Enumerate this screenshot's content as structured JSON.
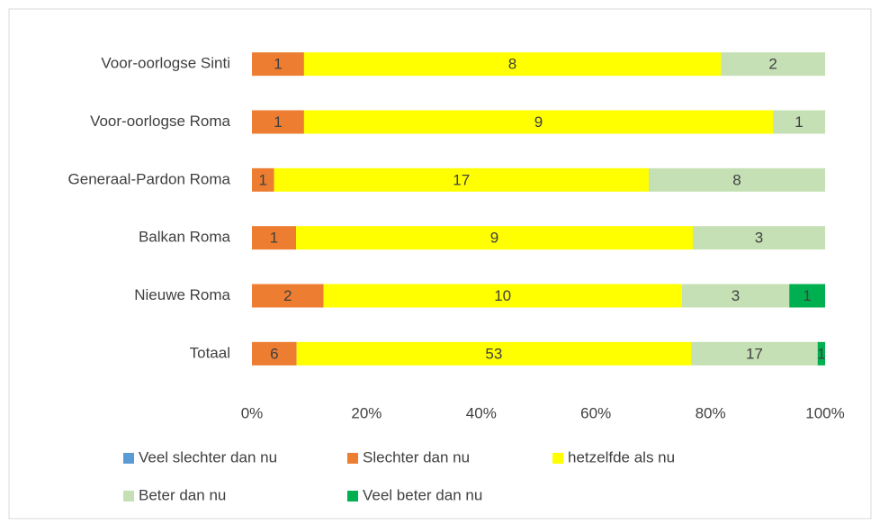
{
  "chart_data": {
    "type": "stacked_percent_bar",
    "orientation": "horizontal",
    "categories": [
      "Voor-oorlogse Sinti",
      "Voor-oorlogse Roma",
      "Generaal-Pardon Roma",
      "Balkan Roma",
      "Nieuwe Roma",
      "Totaal"
    ],
    "series": [
      {
        "name": "Veel slechter dan nu",
        "color": "#5b9bd5",
        "values": [
          0,
          0,
          0,
          0,
          0,
          0
        ]
      },
      {
        "name": "Slechter dan nu",
        "color": "#ed7d31",
        "values": [
          1,
          1,
          1,
          1,
          2,
          6
        ]
      },
      {
        "name": "hetzelfde als nu",
        "color": "#ffff00",
        "values": [
          8,
          9,
          17,
          9,
          10,
          53
        ]
      },
      {
        "name": "Beter dan nu",
        "color": "#c5e0b4",
        "values": [
          2,
          1,
          8,
          3,
          3,
          17
        ]
      },
      {
        "name": "Veel beter dan nu",
        "color": "#00b050",
        "values": [
          0,
          0,
          0,
          0,
          1,
          1
        ]
      }
    ],
    "xlim": [
      0,
      100
    ],
    "xticks": [
      {
        "value": 0,
        "label": "0%"
      },
      {
        "value": 20,
        "label": "20%"
      },
      {
        "value": 40,
        "label": "40%"
      },
      {
        "value": 60,
        "label": "60%"
      },
      {
        "value": 80,
        "label": "80%"
      },
      {
        "value": 100,
        "label": "100%"
      }
    ],
    "grid": false,
    "legend": "bottom"
  }
}
